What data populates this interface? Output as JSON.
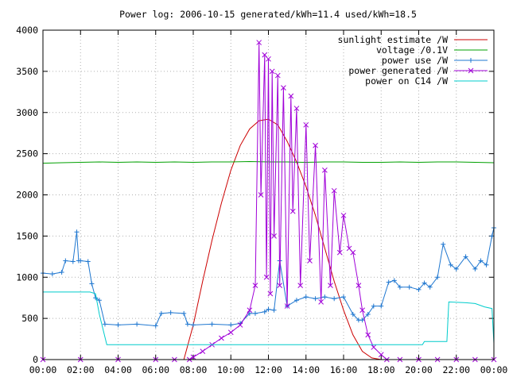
{
  "chart_data": {
    "type": "line",
    "title": "Power log: 2006-10-15 generated/kWh=11.4 used/kWh=18.5",
    "xlabel": "",
    "ylabel": "",
    "xlim": [
      0,
      24
    ],
    "ylim": [
      0,
      4000
    ],
    "grid": true,
    "legend_position": "top-right",
    "x_ticks": [
      "00:00",
      "02:00",
      "04:00",
      "06:00",
      "08:00",
      "10:00",
      "12:00",
      "14:00",
      "16:00",
      "18:00",
      "20:00",
      "22:00",
      "00:00"
    ],
    "y_ticks": [
      "0",
      "500",
      "1000",
      "1500",
      "2000",
      "2500",
      "3000",
      "3500",
      "4000"
    ],
    "series": [
      {
        "name": "sunlight estimate /W",
        "color": "#cc0000",
        "marker": "none",
        "x": [
          7.5,
          8,
          8.5,
          9,
          9.5,
          10,
          10.5,
          11,
          11.5,
          12,
          12.5,
          13,
          13.5,
          14,
          14.5,
          15,
          15.5,
          16,
          16.5,
          17,
          17.5,
          18
        ],
        "values": [
          0,
          420,
          950,
          1450,
          1900,
          2300,
          2600,
          2800,
          2900,
          2920,
          2850,
          2650,
          2400,
          2100,
          1750,
          1350,
          950,
          600,
          300,
          100,
          20,
          0
        ]
      },
      {
        "name": "voltage /0.1V",
        "color": "#00a000",
        "marker": "none",
        "x": [
          0,
          1,
          2,
          3,
          4,
          5,
          6,
          7,
          8,
          9,
          10,
          11,
          12,
          13,
          14,
          15,
          16,
          17,
          18,
          19,
          20,
          21,
          22,
          23,
          24
        ],
        "values": [
          2385,
          2390,
          2395,
          2400,
          2395,
          2400,
          2395,
          2400,
          2395,
          2400,
          2400,
          2405,
          2400,
          2400,
          2395,
          2400,
          2400,
          2395,
          2395,
          2400,
          2395,
          2400,
          2400,
          2395,
          2390
        ]
      },
      {
        "name": "power use /W",
        "color": "#1f77d0",
        "marker": "plus",
        "x": [
          0,
          0.5,
          1.0,
          1.2,
          1.6,
          1.8,
          1.9,
          2.0,
          2.4,
          2.6,
          2.8,
          3.0,
          3.3,
          4.0,
          5.0,
          6.0,
          6.3,
          6.8,
          7.5,
          7.7,
          8.0,
          9.0,
          10.0,
          10.5,
          11.0,
          11.3,
          11.8,
          12.0,
          12.3,
          12.6,
          13.0,
          13.5,
          14.0,
          14.5,
          15.0,
          15.5,
          16.0,
          16.5,
          16.8,
          17.0,
          17.3,
          17.6,
          18.0,
          18.4,
          18.7,
          19.0,
          19.5,
          20.0,
          20.3,
          20.6,
          21.0,
          21.3,
          21.7,
          22.0,
          22.5,
          23.0,
          23.3,
          23.6,
          23.9,
          24.0
        ],
        "values": [
          1050,
          1040,
          1060,
          1200,
          1190,
          1550,
          1200,
          1200,
          1190,
          920,
          750,
          720,
          430,
          420,
          430,
          410,
          560,
          570,
          560,
          430,
          420,
          430,
          420,
          440,
          560,
          560,
          580,
          610,
          600,
          1200,
          650,
          720,
          760,
          740,
          760,
          740,
          760,
          550,
          480,
          480,
          550,
          650,
          650,
          940,
          960,
          880,
          880,
          850,
          930,
          880,
          1000,
          1400,
          1150,
          1100,
          1250,
          1100,
          1200,
          1150,
          1500,
          1600
        ]
      },
      {
        "name": "power generated /W",
        "color": "#a000d8",
        "marker": "cross",
        "x": [
          0,
          2,
          4,
          6,
          7,
          7.8,
          8.0,
          8.5,
          9.0,
          9.5,
          10.0,
          10.5,
          11.0,
          11.3,
          11.5,
          11.6,
          11.8,
          11.9,
          12.0,
          12.1,
          12.2,
          12.3,
          12.5,
          12.6,
          12.8,
          13.0,
          13.2,
          13.3,
          13.5,
          13.7,
          14.0,
          14.2,
          14.5,
          14.8,
          15.0,
          15.3,
          15.5,
          15.8,
          16.0,
          16.3,
          16.5,
          16.8,
          17.0,
          17.3,
          17.6,
          18.0,
          18.3,
          19,
          20,
          21,
          22,
          23,
          24
        ],
        "values": [
          0,
          0,
          0,
          0,
          0,
          0,
          30,
          100,
          180,
          260,
          330,
          420,
          600,
          900,
          3850,
          2000,
          3700,
          1000,
          3650,
          800,
          3500,
          1500,
          3450,
          900,
          3300,
          650,
          3200,
          1800,
          3050,
          900,
          2850,
          1200,
          2600,
          700,
          2300,
          900,
          2050,
          1300,
          1750,
          1350,
          1300,
          900,
          600,
          300,
          150,
          60,
          0,
          0,
          0,
          0,
          0,
          0,
          0
        ]
      },
      {
        "name": "power on C14 /W",
        "color": "#00cccc",
        "marker": "none",
        "x": [
          0,
          2.5,
          2.8,
          3.0,
          3.4,
          5,
          10,
          15,
          16.3,
          18,
          19,
          20.2,
          20.3,
          21.5,
          21.6,
          22.5,
          23.0,
          23.5,
          23.9,
          24.0
        ],
        "values": [
          820,
          820,
          800,
          550,
          180,
          180,
          180,
          180,
          180,
          180,
          180,
          180,
          220,
          220,
          700,
          690,
          680,
          640,
          620,
          200
        ]
      }
    ]
  }
}
